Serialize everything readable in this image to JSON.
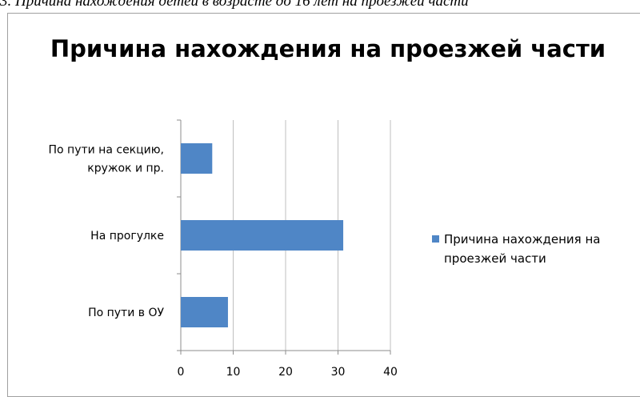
{
  "caption": "3. Причина нахождения детей в возрасте до 16 лет на проезжей части",
  "colors": {
    "bar": "#4f86c6",
    "grid": "#bfbfbf",
    "axis": "#8c8c8c"
  },
  "chart_data": {
    "type": "bar",
    "orientation": "horizontal",
    "title": "Причина нахождения на проезжей части",
    "categories": [
      "По пути в ОУ",
      "На прогулке",
      "По пути на секцию, кружок и пр."
    ],
    "category_lines": [
      [
        "По пути в ОУ"
      ],
      [
        "На прогулке"
      ],
      [
        "По пути на секцию,",
        "кружок и пр."
      ]
    ],
    "series": [
      {
        "name": "Причина нахождения на проезжей части",
        "values": [
          9,
          31,
          6
        ]
      }
    ],
    "xlim": [
      0,
      40
    ],
    "x_ticks": [
      0,
      10,
      20,
      30,
      40
    ],
    "grid": "vertical",
    "legend_position": "right"
  }
}
